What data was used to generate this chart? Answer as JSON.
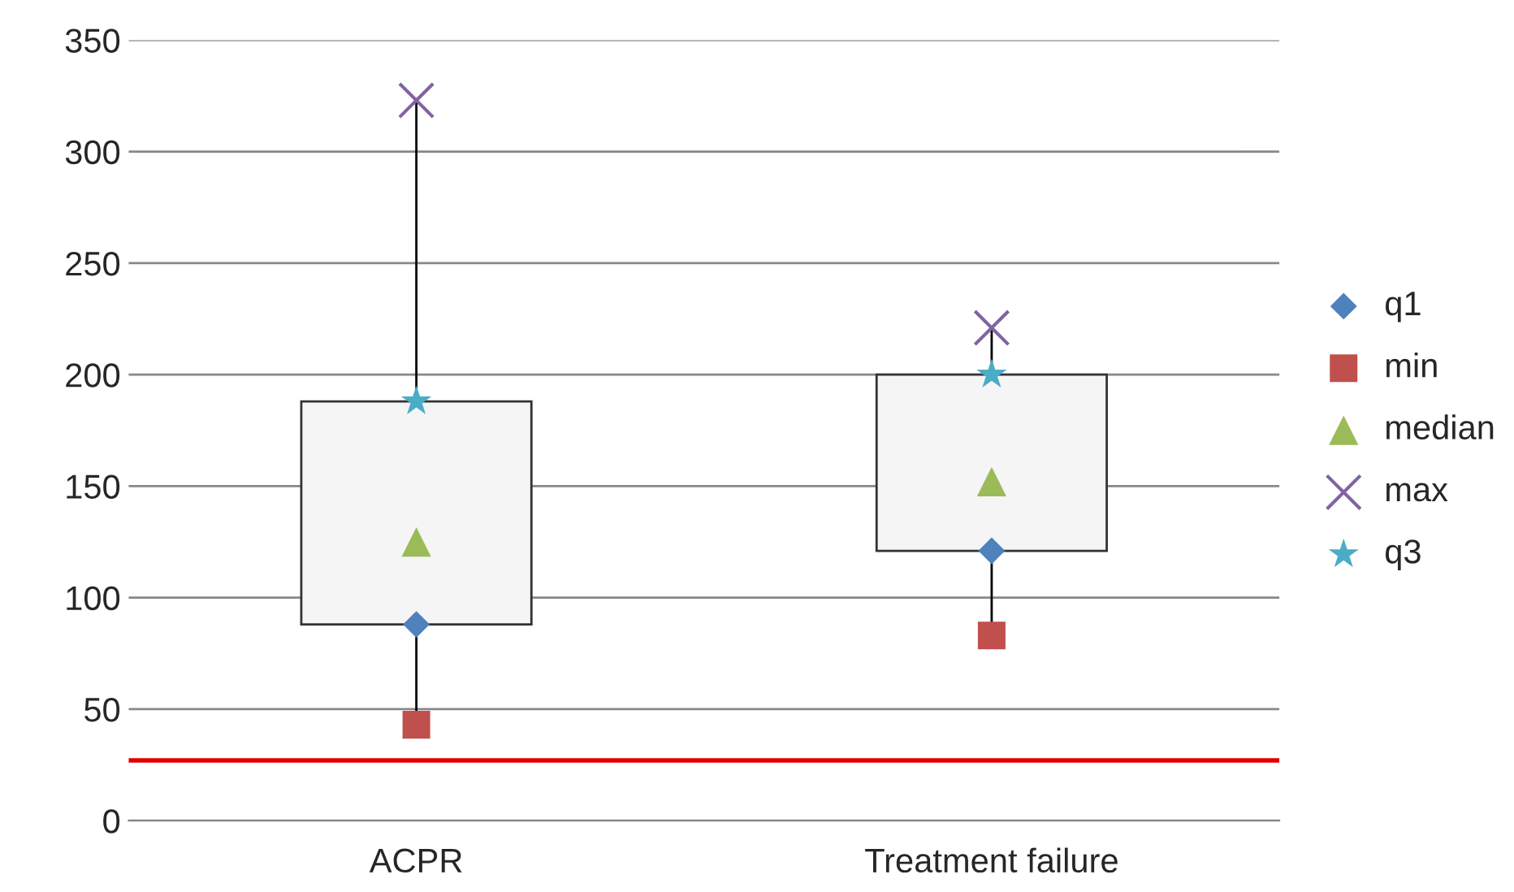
{
  "chart_data": {
    "type": "box",
    "categories": [
      "ACPR",
      "Treatment failure"
    ],
    "boxes": [
      {
        "low": 43,
        "q1": 88,
        "q3": 188,
        "high": 323
      },
      {
        "low": 83,
        "q1": 121,
        "q3": 200,
        "high": 221
      }
    ],
    "series": [
      {
        "type": "scatter",
        "name": "q1",
        "color": "#4f81bd",
        "marker": "diamond",
        "x": [
          "ACPR",
          "Treatment failure"
        ],
        "values": [
          88,
          121
        ]
      },
      {
        "type": "scatter",
        "name": "min",
        "color": "#c0504d",
        "marker": "square",
        "x": [
          "ACPR",
          "Treatment failure"
        ],
        "values": [
          43,
          83
        ]
      },
      {
        "type": "scatter",
        "name": "median",
        "color": "#9bbb59",
        "marker": "triangle",
        "x": [
          "ACPR",
          "Treatment failure"
        ],
        "values": [
          125,
          152
        ]
      },
      {
        "type": "scatter",
        "name": "max",
        "color": "#8064a2",
        "marker": "cross",
        "x": [
          "ACPR",
          "Treatment failure"
        ],
        "values": [
          323,
          221
        ]
      },
      {
        "type": "scatter",
        "name": "q3",
        "color": "#4bacc6",
        "marker": "star",
        "x": [
          "ACPR",
          "Treatment failure"
        ],
        "values": [
          188,
          200
        ]
      }
    ],
    "ylim": [
      0,
      350
    ],
    "yticks": [
      0,
      50,
      100,
      150,
      200,
      250,
      300,
      350
    ],
    "ref_lines": [
      {
        "axis": "y",
        "value": 27,
        "label": null,
        "color": "#e00000"
      }
    ],
    "grid": "y",
    "legend": "right"
  }
}
